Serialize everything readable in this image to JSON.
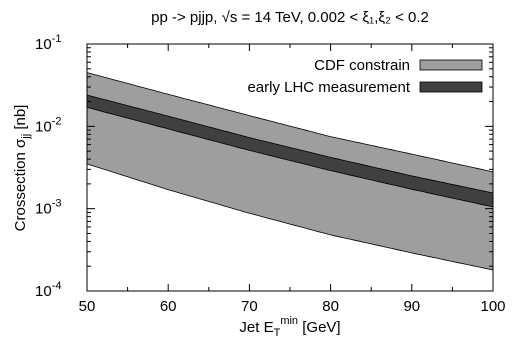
{
  "chart_data": {
    "type": "area",
    "title": "pp -> pjjp, √s = 14 TeV,  0.002 < ξ₁,ξ₂ < 0.2",
    "xlabel": "Jet E_T^min [GeV]",
    "ylabel": "Crossection σ_jj [nb]",
    "xlim": [
      50,
      100
    ],
    "ylim": [
      0.0001,
      0.1
    ],
    "yscale": "log",
    "grid": false,
    "legend_position": "top-right",
    "x_ticks": [
      50,
      60,
      70,
      80,
      90,
      100
    ],
    "x_tick_labels": [
      "50",
      "60",
      "70",
      "80",
      "90",
      "100"
    ],
    "y_ticks": [
      0.0001,
      0.001,
      0.01,
      0.1
    ],
    "y_tick_labels": [
      {
        "base": "10",
        "exp": "-4"
      },
      {
        "base": "10",
        "exp": "-3"
      },
      {
        "base": "10",
        "exp": "-2"
      },
      {
        "base": "10",
        "exp": "-1"
      }
    ],
    "series": [
      {
        "name": "CDF constrain",
        "color": "#9e9e9e",
        "x": [
          50,
          60,
          70,
          80,
          90,
          100
        ],
        "upper": [
          0.045,
          0.0245,
          0.0135,
          0.0075,
          0.0046,
          0.0028
        ],
        "lower": [
          0.0035,
          0.0017,
          0.00088,
          0.00048,
          0.00029,
          0.00018
        ]
      },
      {
        "name": "early LHC measurement",
        "color": "#404040",
        "x": [
          50,
          60,
          70,
          80,
          90,
          100
        ],
        "upper": [
          0.024,
          0.0133,
          0.0073,
          0.0042,
          0.0025,
          0.00155
        ],
        "lower": [
          0.017,
          0.0093,
          0.0051,
          0.0029,
          0.00172,
          0.00105
        ]
      }
    ]
  }
}
